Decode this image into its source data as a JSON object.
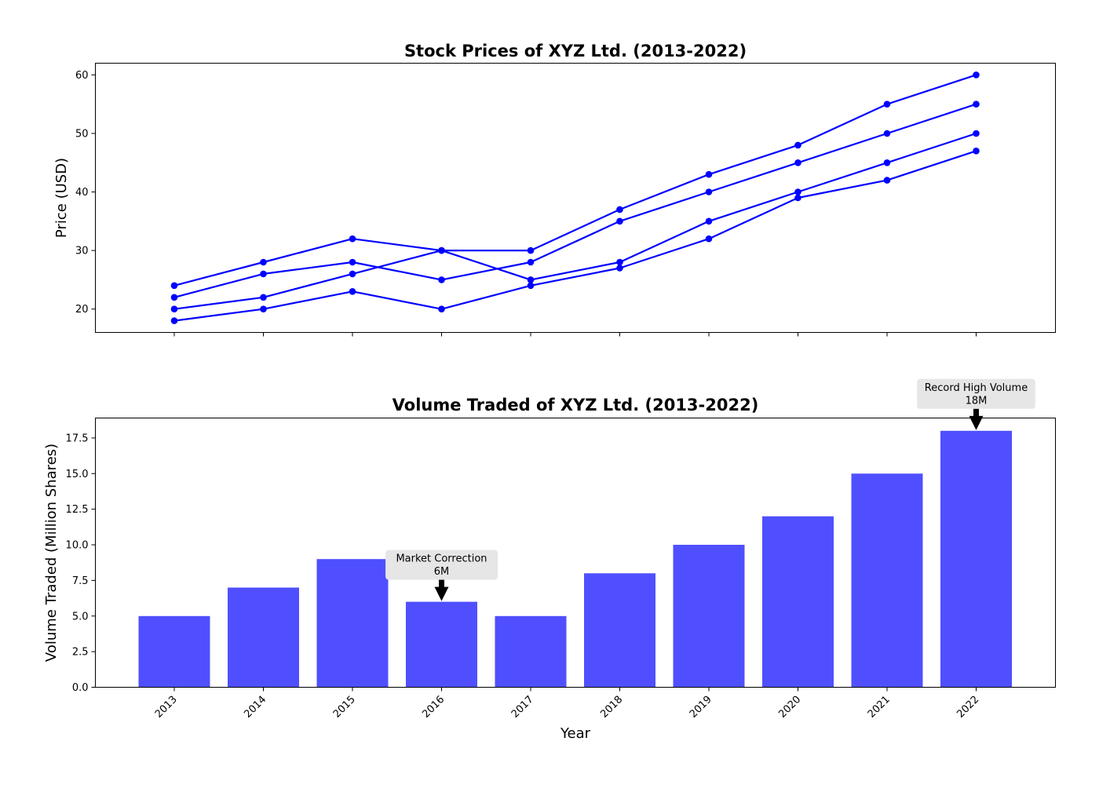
{
  "chart_data": [
    {
      "type": "line",
      "title": "Stock Prices of XYZ Ltd. (2013-2022)",
      "xlabel": "",
      "ylabel": "Price (USD)",
      "x": [
        2013,
        2014,
        2015,
        2016,
        2017,
        2018,
        2019,
        2020,
        2021,
        2022
      ],
      "ylim": [
        16,
        62
      ],
      "yticks": [
        20,
        30,
        40,
        50,
        60
      ],
      "grid": false,
      "color": "#0000ff",
      "series": [
        {
          "values": [
            24,
            28,
            32,
            30,
            30,
            37,
            43,
            48,
            55,
            60
          ]
        },
        {
          "values": [
            22,
            26,
            28,
            25,
            28,
            35,
            40,
            45,
            50,
            55
          ]
        },
        {
          "values": [
            20,
            22,
            26,
            30,
            25,
            28,
            35,
            40,
            45,
            50
          ]
        },
        {
          "values": [
            18,
            20,
            23,
            20,
            24,
            27,
            32,
            39,
            42,
            47
          ]
        }
      ]
    },
    {
      "type": "bar",
      "title": "Volume Traded of XYZ Ltd. (2013-2022)",
      "xlabel": "Year",
      "ylabel": "Volume Traded (Million Shares)",
      "categories": [
        "2013",
        "2014",
        "2015",
        "2016",
        "2017",
        "2018",
        "2019",
        "2020",
        "2021",
        "2022"
      ],
      "values": [
        5,
        7,
        9,
        6,
        5,
        8,
        10,
        12,
        15,
        18
      ],
      "ylim": [
        0,
        18.9
      ],
      "yticks": [
        "0.0",
        "2.5",
        "5.0",
        "7.5",
        "10.0",
        "12.5",
        "15.0",
        "17.5"
      ],
      "grid": false,
      "color": "#4f4fff",
      "annotations": [
        {
          "category": "2016",
          "value": 6,
          "lines": [
            "Market Correction",
            "6M"
          ]
        },
        {
          "category": "2022",
          "value": 18,
          "lines": [
            "Record High Volume",
            "18M"
          ]
        }
      ]
    }
  ]
}
